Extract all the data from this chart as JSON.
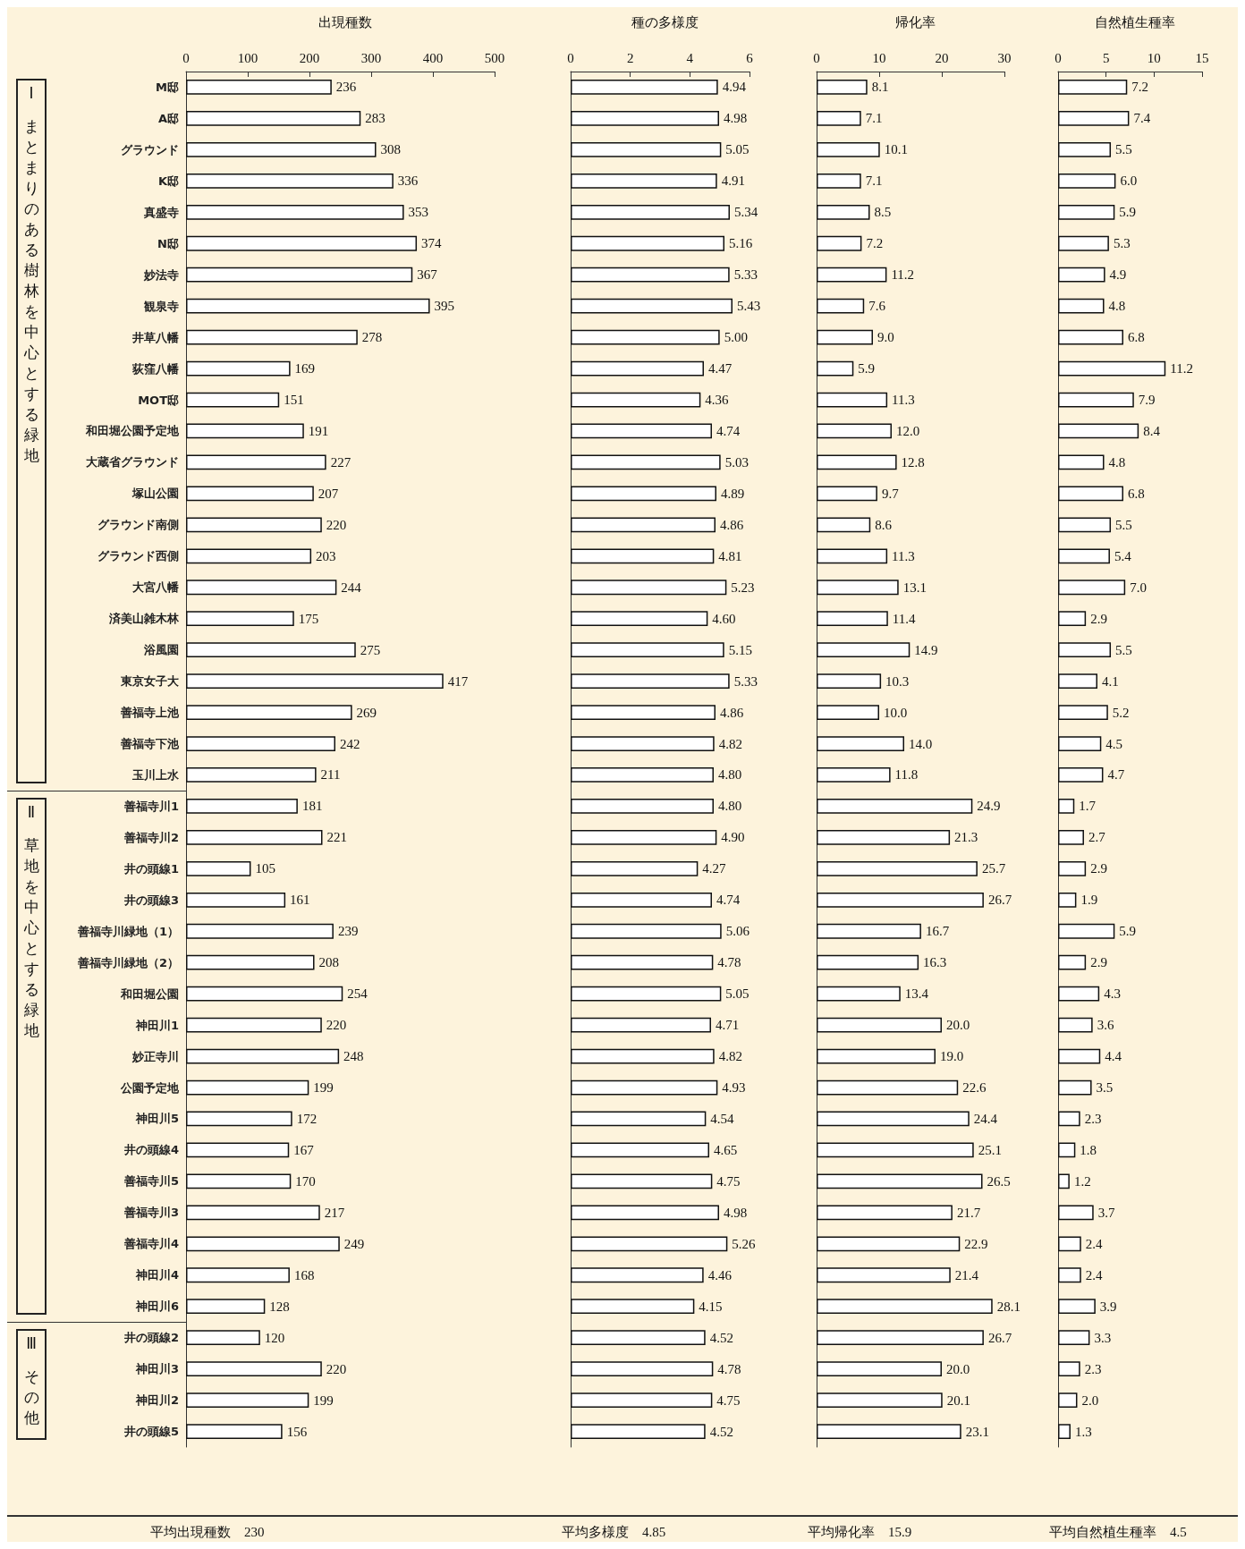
{
  "chart_data": [
    {
      "type": "bar",
      "orientation": "horizontal",
      "title": "出現種数",
      "categories": [
        "M邸",
        "A邸",
        "グラウンド",
        "K邸",
        "真盛寺",
        "N邸",
        "妙法寺",
        "観泉寺",
        "井草八幡",
        "荻窪八幡",
        "MOT邸",
        "和田堀公園予定地",
        "大蔵省グラウンド",
        "塚山公園",
        "グラウンド南側",
        "グラウンド西側",
        "大宮八幡",
        "済美山雑木林",
        "浴風園",
        "東京女子大",
        "善福寺上池",
        "善福寺下池",
        "玉川上水",
        "善福寺川1",
        "善福寺川2",
        "井の頭線1",
        "井の頭線3",
        "善福寺川緑地（1）",
        "善福寺川緑地（2）",
        "和田堀公園",
        "神田川1",
        "妙正寺川",
        "公園予定地",
        "神田川5",
        "井の頭線4",
        "善福寺川5",
        "善福寺川3",
        "善福寺川4",
        "神田川4",
        "神田川6",
        "井の頭線2",
        "神田川3",
        "神田川2",
        "井の頭線5"
      ],
      "color": "#ffffff",
      "values": [
        236,
        283,
        308,
        336,
        353,
        374,
        367,
        395,
        278,
        169,
        151,
        191,
        227,
        207,
        220,
        203,
        244,
        175,
        275,
        417,
        269,
        242,
        211,
        181,
        221,
        105,
        161,
        239,
        208,
        254,
        220,
        248,
        199,
        172,
        167,
        170,
        217,
        249,
        168,
        128,
        120,
        220,
        199,
        156
      ],
      "value_labels": [
        "236",
        "283",
        "308",
        "336",
        "353",
        "374",
        "367",
        "395",
        "278",
        "169",
        "151",
        "191",
        "227",
        "207",
        "220",
        "203",
        "244",
        "175",
        "275",
        "417",
        "269",
        "242",
        "211",
        "181",
        "221",
        "105",
        "161",
        "239",
        "208",
        "254",
        "220",
        "248",
        "199",
        "172",
        "167",
        "170",
        "217",
        "249",
        "168",
        "128",
        "120",
        "220",
        "199",
        "156"
      ],
      "xlim": [
        0,
        500
      ],
      "xticks": [
        0,
        100,
        200,
        300,
        400,
        500
      ],
      "grid": false,
      "annotations": [
        "Ⅰ まとまりのある樹林を中心とする緑地",
        "Ⅱ 草地を中心とする緑地",
        "Ⅲ その他",
        "平均出現種数　230"
      ]
    },
    {
      "type": "bar",
      "orientation": "horizontal",
      "title": "種の多様度",
      "categories": [
        null,
        null,
        null,
        null,
        null,
        null,
        null,
        null,
        null,
        null,
        null,
        null,
        null,
        null,
        null,
        null,
        null,
        null,
        null,
        null,
        null,
        null,
        null,
        null,
        null,
        null,
        null,
        null,
        null,
        null,
        null,
        null,
        null,
        null,
        null,
        null,
        null,
        null,
        null,
        null,
        null,
        null,
        null,
        null
      ],
      "color": "#ffffff",
      "values": [
        4.94,
        4.98,
        5.05,
        4.91,
        5.34,
        5.16,
        5.33,
        5.43,
        5.0,
        4.47,
        4.36,
        4.74,
        5.03,
        4.89,
        4.86,
        4.81,
        5.23,
        4.6,
        5.15,
        5.33,
        4.86,
        4.82,
        4.8,
        4.8,
        4.9,
        4.27,
        4.74,
        5.06,
        4.78,
        5.05,
        4.71,
        4.82,
        4.93,
        4.54,
        4.65,
        4.75,
        4.98,
        5.26,
        4.46,
        4.15,
        4.52,
        4.78,
        4.75,
        4.52
      ],
      "value_labels": [
        "4.94",
        "4.98",
        "5.05",
        "4.91",
        "5.34",
        "5.16",
        "5.33",
        "5.43",
        "5.00",
        "4.47",
        "4.36",
        "4.74",
        "5.03",
        "4.89",
        "4.86",
        "4.81",
        "5.23",
        "4.60",
        "5.15",
        "5.33",
        "4.86",
        "4.82",
        "4.80",
        "4.80",
        "4.90",
        "4.27",
        "4.74",
        "5.06",
        "4.78",
        "5.05",
        "4.71",
        "4.82",
        "4.93",
        "4.54",
        "4.65",
        "4.75",
        "4.98",
        "5.26",
        "4.46",
        "4.15",
        "4.52",
        "4.78",
        "4.75",
        "4.52"
      ],
      "xlim": [
        0,
        6
      ],
      "xticks": [
        0,
        2,
        4,
        6
      ],
      "grid": false,
      "tick_labels": "x",
      "annotations": [
        "平均多様度　4.85"
      ]
    },
    {
      "type": "bar",
      "orientation": "horizontal",
      "title": "帰化率",
      "categories": [
        null,
        null,
        null,
        null,
        null,
        null,
        null,
        null,
        null,
        null,
        null,
        null,
        null,
        null,
        null,
        null,
        null,
        null,
        null,
        null,
        null,
        null,
        null,
        null,
        null,
        null,
        null,
        null,
        null,
        null,
        null,
        null,
        null,
        null,
        null,
        null,
        null,
        null,
        null,
        null,
        null,
        null,
        null,
        null
      ],
      "color": "#ffffff",
      "values": [
        8.1,
        7.1,
        10.1,
        7.1,
        8.5,
        7.2,
        11.2,
        7.6,
        9.0,
        5.9,
        11.3,
        12.0,
        12.8,
        9.7,
        8.6,
        11.3,
        13.1,
        11.4,
        14.9,
        10.3,
        10.0,
        14.0,
        11.8,
        24.9,
        21.3,
        25.7,
        26.7,
        16.7,
        16.3,
        13.4,
        20.0,
        19.0,
        22.6,
        24.4,
        25.1,
        26.5,
        21.7,
        22.9,
        21.4,
        28.1,
        26.7,
        20.0,
        20.1,
        23.1
      ],
      "value_labels": [
        "8.1",
        "7.1",
        "10.1",
        "7.1",
        "8.5",
        "7.2",
        "11.2",
        "7.6",
        "9.0",
        "5.9",
        "11.3",
        "12.0",
        "12.8",
        "9.7",
        "8.6",
        "11.3",
        "13.1",
        "11.4",
        "14.9",
        "10.3",
        "10.0",
        "14.0",
        "11.8",
        "24.9",
        "21.3",
        "25.7",
        "26.7",
        "16.7",
        "16.3",
        "13.4",
        "20.0",
        "19.0",
        "22.6",
        "24.4",
        "25.1",
        "26.5",
        "21.7",
        "22.9",
        "21.4",
        "28.1",
        "26.7",
        "20.0",
        "20.1",
        "23.1"
      ],
      "xlim": [
        0,
        30
      ],
      "xticks": [
        0,
        10,
        20,
        30
      ],
      "grid": false,
      "tick_labels": "x",
      "annotations": [
        "平均帰化率　15.9"
      ]
    },
    {
      "type": "bar",
      "orientation": "horizontal",
      "title": "自然植生種率",
      "categories": [
        null,
        null,
        null,
        null,
        null,
        null,
        null,
        null,
        null,
        null,
        null,
        null,
        null,
        null,
        null,
        null,
        null,
        null,
        null,
        null,
        null,
        null,
        null,
        null,
        null,
        null,
        null,
        null,
        null,
        null,
        null,
        null,
        null,
        null,
        null,
        null,
        null,
        null,
        null,
        null,
        null,
        null,
        null,
        null
      ],
      "color": "#ffffff",
      "values": [
        7.2,
        7.4,
        5.5,
        6.0,
        5.9,
        5.3,
        4.9,
        4.8,
        6.8,
        11.2,
        7.9,
        8.4,
        4.8,
        6.8,
        5.5,
        5.4,
        7.0,
        2.9,
        5.5,
        4.1,
        5.2,
        4.5,
        4.7,
        1.7,
        2.7,
        2.9,
        1.9,
        5.9,
        2.9,
        4.3,
        3.6,
        4.4,
        3.5,
        2.3,
        1.8,
        1.2,
        3.7,
        2.4,
        2.4,
        3.9,
        3.3,
        2.3,
        2.0,
        1.3
      ],
      "value_labels": [
        "7.2",
        "7.4",
        "5.5",
        "6.0",
        "5.9",
        "5.3",
        "4.9",
        "4.8",
        "6.8",
        "11.2",
        "7.9",
        "8.4",
        "4.8",
        "6.8",
        "5.5",
        "5.4",
        "7.0",
        "2.9",
        "5.5",
        "4.1",
        "5.2",
        "4.5",
        "4.7",
        "1.7",
        "2.7",
        "2.9",
        "1.9",
        "5.9",
        "2.9",
        "4.3",
        "3.6",
        "4.4",
        "3.5",
        "2.3",
        "1.8",
        "1.2",
        "3.7",
        "2.4",
        "2.4",
        "3.9",
        "3.3",
        "2.3",
        "2.0",
        "1.3"
      ],
      "xlim": [
        0,
        15
      ],
      "xticks": [
        0,
        5,
        10,
        15
      ],
      "grid": false,
      "tick_labels": "x",
      "annotations": [
        "平均自然植生種率　4.5"
      ]
    }
  ]
}
